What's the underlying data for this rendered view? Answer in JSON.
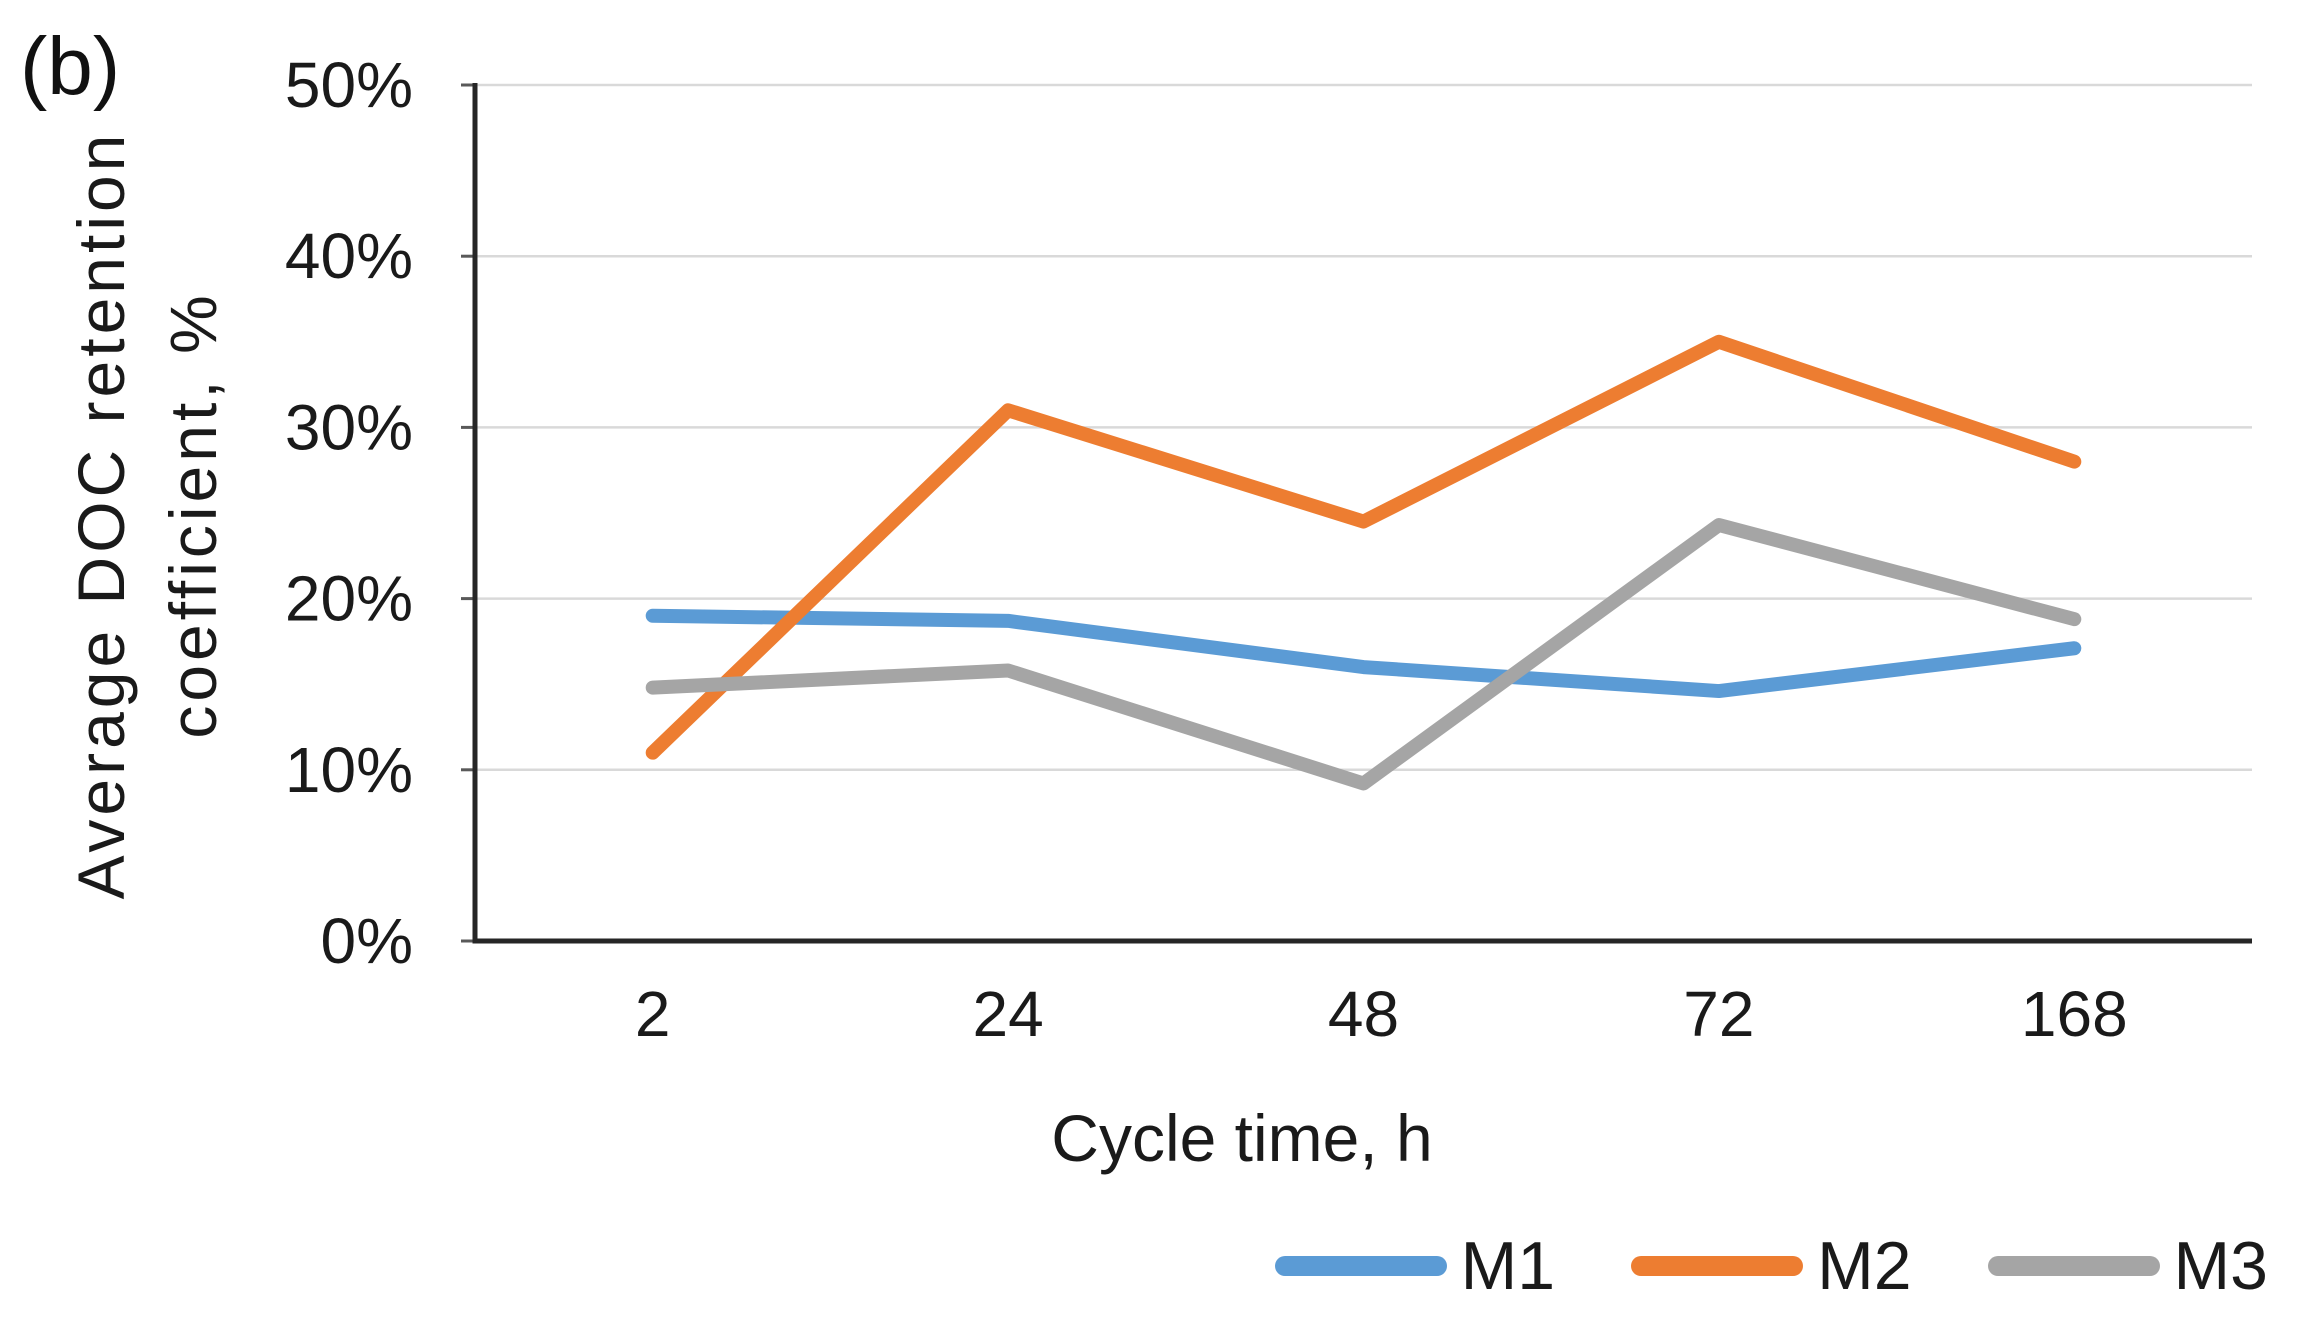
{
  "figure_label": "(b)",
  "chart_data": {
    "type": "line",
    "title": "",
    "xlabel": "Cycle time, h",
    "ylabel": "Average DOC retention coefficient, %",
    "ylabel_lines": [
      "Average DOC retention",
      "coefficient, %"
    ],
    "categories": [
      "2",
      "24",
      "48",
      "72",
      "168"
    ],
    "series": [
      {
        "name": "M1",
        "color": "#5B9BD5",
        "values": [
          19,
          18.7,
          16,
          14.6,
          17.1
        ]
      },
      {
        "name": "M2",
        "color": "#ED7D31",
        "values": [
          11,
          31,
          24.5,
          35,
          28
        ]
      },
      {
        "name": "M3",
        "color": "#A5A5A5",
        "values": [
          14.8,
          15.8,
          9.2,
          24.3,
          18.8
        ]
      }
    ],
    "ylim": [
      0,
      50
    ],
    "y_tick_step": 10,
    "y_tick_labels": [
      "0%",
      "10%",
      "20%",
      "30%",
      "40%",
      "50%"
    ],
    "grid": true,
    "gridline_color": "#D9D9D9",
    "axis_color": "#262626",
    "tick_mark_color": "#595959",
    "text_color": "#1A1A1A",
    "legend_position": "bottom-right"
  }
}
